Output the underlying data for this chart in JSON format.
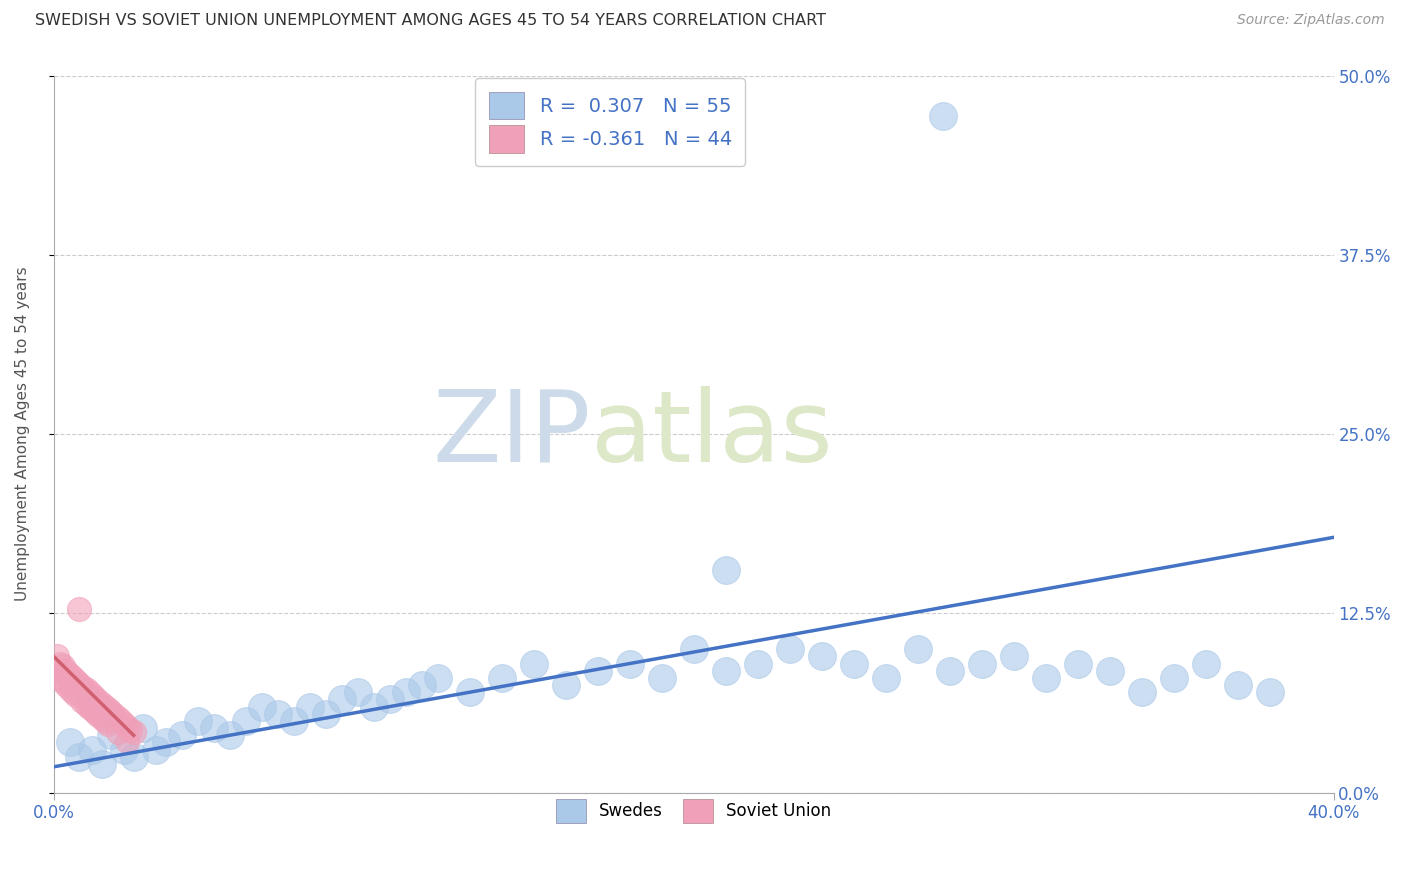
{
  "title": "SWEDISH VS SOVIET UNION UNEMPLOYMENT AMONG AGES 45 TO 54 YEARS CORRELATION CHART",
  "source": "Source: ZipAtlas.com",
  "ylabel": "Unemployment Among Ages 45 to 54 years",
  "ytick_values": [
    0.0,
    0.125,
    0.25,
    0.375,
    0.5
  ],
  "ytick_labels": [
    "0.0%",
    "12.5%",
    "25.0%",
    "37.5%",
    "50.0%"
  ],
  "xlim": [
    0.0,
    0.4
  ],
  "ylim": [
    0.0,
    0.5
  ],
  "xtick_labels": [
    "0.0%",
    "40.0%"
  ],
  "watermark_zip": "ZIP",
  "watermark_atlas": "atlas",
  "blue_scatter_color": "#aac8e8",
  "pink_scatter_color": "#f0a0b8",
  "blue_line_color": "#4472c4",
  "pink_line_color": "#d06070",
  "text_color": "#4472c4",
  "grid_color": "#cccccc",
  "legend1_label": "R =  0.307   N = 55",
  "legend2_label": "R = -0.361   N = 44",
  "bottom_legend1": "Swedes",
  "bottom_legend2": "Soviet Union",
  "blue_trend_x": [
    0.0,
    0.4
  ],
  "blue_trend_y": [
    0.018,
    0.178
  ],
  "pink_trend_x": [
    0.0,
    0.025
  ],
  "pink_trend_y": [
    0.095,
    0.04
  ],
  "swedes_x": [
    0.005,
    0.008,
    0.012,
    0.015,
    0.018,
    0.022,
    0.025,
    0.028,
    0.032,
    0.035,
    0.04,
    0.045,
    0.05,
    0.055,
    0.06,
    0.065,
    0.07,
    0.075,
    0.08,
    0.085,
    0.09,
    0.095,
    0.1,
    0.105,
    0.11,
    0.115,
    0.12,
    0.13,
    0.14,
    0.15,
    0.16,
    0.17,
    0.18,
    0.19,
    0.2,
    0.21,
    0.22,
    0.23,
    0.24,
    0.25,
    0.26,
    0.27,
    0.28,
    0.29,
    0.3,
    0.31,
    0.32,
    0.33,
    0.34,
    0.35,
    0.36,
    0.37,
    0.38,
    0.21,
    0.278
  ],
  "swedes_y": [
    0.035,
    0.025,
    0.03,
    0.02,
    0.04,
    0.03,
    0.025,
    0.045,
    0.03,
    0.035,
    0.04,
    0.05,
    0.045,
    0.04,
    0.05,
    0.06,
    0.055,
    0.05,
    0.06,
    0.055,
    0.065,
    0.07,
    0.06,
    0.065,
    0.07,
    0.075,
    0.08,
    0.07,
    0.08,
    0.09,
    0.075,
    0.085,
    0.09,
    0.08,
    0.1,
    0.085,
    0.09,
    0.1,
    0.095,
    0.09,
    0.08,
    0.1,
    0.085,
    0.09,
    0.095,
    0.08,
    0.09,
    0.085,
    0.07,
    0.08,
    0.09,
    0.075,
    0.07,
    0.155,
    0.472
  ],
  "soviet_x": [
    0.001,
    0.001,
    0.002,
    0.002,
    0.003,
    0.003,
    0.004,
    0.004,
    0.005,
    0.005,
    0.006,
    0.006,
    0.007,
    0.007,
    0.008,
    0.008,
    0.009,
    0.009,
    0.01,
    0.01,
    0.011,
    0.011,
    0.012,
    0.012,
    0.013,
    0.013,
    0.014,
    0.014,
    0.015,
    0.015,
    0.016,
    0.016,
    0.017,
    0.017,
    0.018,
    0.019,
    0.02,
    0.02,
    0.021,
    0.022,
    0.023,
    0.023,
    0.024,
    0.025
  ],
  "soviet_y": [
    0.095,
    0.085,
    0.09,
    0.08,
    0.088,
    0.078,
    0.085,
    0.075,
    0.082,
    0.072,
    0.08,
    0.07,
    0.078,
    0.068,
    0.076,
    0.128,
    0.074,
    0.064,
    0.072,
    0.062,
    0.07,
    0.06,
    0.068,
    0.058,
    0.066,
    0.056,
    0.064,
    0.054,
    0.062,
    0.052,
    0.06,
    0.05,
    0.058,
    0.048,
    0.056,
    0.054,
    0.052,
    0.042,
    0.05,
    0.048,
    0.046,
    0.036,
    0.044,
    0.042
  ]
}
